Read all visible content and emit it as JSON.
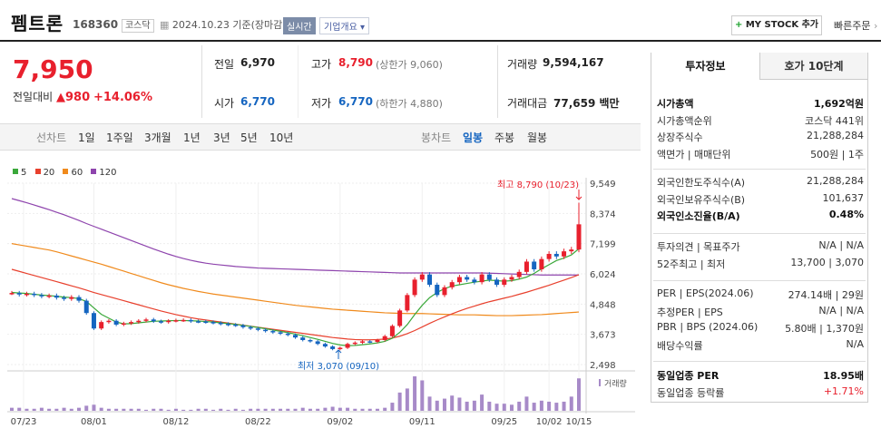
{
  "stock": {
    "name": "펨트론",
    "code": "168360",
    "market": "코스닥",
    "date": "2024.10.23 기준(장마감)",
    "realtime": "실시간",
    "company_info": "기업개요",
    "my_stock": "MY STOCK 추가",
    "quick_order": "빠른주문"
  },
  "price": {
    "current": "7,950",
    "change_label": "전일대비",
    "change": "980",
    "change_pct": "+14.06%"
  },
  "quote": {
    "prev_label": "전일",
    "prev": "6,970",
    "high_label": "고가",
    "high": "8,790",
    "upper_limit": "(상한가 9,060)",
    "volume_label": "거래량",
    "volume": "9,594,167",
    "open_label": "시가",
    "open": "6,770",
    "low_label": "저가",
    "low": "6,770",
    "lower_limit": "(하한가 4,880)",
    "amount_label": "거래대금",
    "amount": "77,659 백만"
  },
  "chart_tabs": {
    "line_label": "선차트",
    "periods": [
      "1일",
      "1주일",
      "3개월",
      "1년",
      "3년",
      "5년",
      "10년"
    ],
    "candle_label": "봉차트",
    "candles": [
      "일봉",
      "주봉",
      "월봉"
    ]
  },
  "legend": [
    {
      "label": "5",
      "color": "#3aa83a"
    },
    {
      "label": "20",
      "color": "#e8402d"
    },
    {
      "label": "60",
      "color": "#f08a1c"
    },
    {
      "label": "120",
      "color": "#8e44ad"
    }
  ],
  "chart_data": {
    "type": "candlestick",
    "y_ticks": [
      "9,549",
      "8,374",
      "7,199",
      "6,024",
      "4,848",
      "3,673",
      "2,498"
    ],
    "ylim": [
      2498,
      9549
    ],
    "x_ticks": [
      "07/23",
      "08/01",
      "08/12",
      "08/22",
      "09/02",
      "09/11",
      "09/25",
      "10/02",
      "10/15"
    ],
    "max_label": "최고 8,790 (10/23)",
    "min_label": "최저 3,070 (09/10)",
    "volume_label": "거래량",
    "up_color": "#e8202d",
    "down_color": "#1565c0",
    "closes": [
      5280,
      5220,
      5250,
      5200,
      5150,
      5180,
      5100,
      5050,
      5120,
      4980,
      4500,
      3900,
      4150,
      4200,
      4050,
      4100,
      4150,
      4200,
      4250,
      4180,
      4150,
      4200,
      4220,
      4230,
      4180,
      4170,
      4150,
      4120,
      4080,
      4050,
      4020,
      3950,
      3900,
      3850,
      3800,
      3750,
      3700,
      3650,
      3550,
      3450,
      3400,
      3300,
      3200,
      3100,
      3150,
      3300,
      3350,
      3400,
      3380,
      3450,
      3600,
      4000,
      4600,
      5200,
      5800,
      6000,
      5600,
      5200,
      5500,
      5700,
      5900,
      5800,
      5700,
      6000,
      5800,
      5600,
      5800,
      5900,
      6100,
      6500,
      6200,
      6600,
      6800,
      6700,
      6900,
      6970,
      7950
    ],
    "ma120": [
      8950,
      8870,
      8790,
      8700,
      8610,
      8520,
      8420,
      8320,
      8210,
      8100,
      7980,
      7870,
      7760,
      7650,
      7540,
      7430,
      7320,
      7210,
      7100,
      6990,
      6890,
      6790,
      6700,
      6620,
      6550,
      6490,
      6440,
      6400,
      6370,
      6340,
      6310,
      6290,
      6270,
      6250,
      6240,
      6230,
      6220,
      6210,
      6200,
      6190,
      6180,
      6170,
      6160,
      6150,
      6140,
      6130,
      6120,
      6110,
      6100,
      6090,
      6080,
      6070,
      6060,
      6060,
      6060,
      6060,
      6060,
      6060,
      6060,
      6060,
      6060,
      6060,
      6060,
      6060,
      6050,
      6040,
      6030,
      6020,
      6010,
      6000,
      5990,
      5980,
      5980,
      5980,
      5980,
      5980,
      5980
    ],
    "ma60": [
      7200,
      7150,
      7100,
      7050,
      7000,
      6950,
      6880,
      6800,
      6720,
      6640,
      6560,
      6480,
      6400,
      6310,
      6220,
      6130,
      6040,
      5950,
      5860,
      5770,
      5680,
      5600,
      5530,
      5460,
      5400,
      5340,
      5290,
      5240,
      5200,
      5160,
      5120,
      5080,
      5040,
      5000,
      4960,
      4920,
      4880,
      4840,
      4800,
      4770,
      4740,
      4710,
      4680,
      4650,
      4630,
      4610,
      4590,
      4570,
      4550,
      4530,
      4510,
      4500,
      4490,
      4480,
      4480,
      4480,
      4470,
      4460,
      4450,
      4440,
      4430,
      4430,
      4430,
      4420,
      4410,
      4400,
      4400,
      4400,
      4410,
      4420,
      4430,
      4440,
      4460,
      4480,
      4500,
      4520,
      4540
    ],
    "ma20": [
      6200,
      6120,
      6040,
      5960,
      5880,
      5800,
      5720,
      5640,
      5560,
      5480,
      5390,
      5300,
      5220,
      5140,
      5060,
      4980,
      4900,
      4820,
      4740,
      4660,
      4580,
      4510,
      4440,
      4380,
      4320,
      4270,
      4230,
      4190,
      4150,
      4110,
      4070,
      4030,
      3990,
      3950,
      3910,
      3870,
      3830,
      3790,
      3750,
      3710,
      3670,
      3630,
      3590,
      3550,
      3520,
      3490,
      3470,
      3460,
      3460,
      3470,
      3490,
      3530,
      3600,
      3700,
      3820,
      3960,
      4100,
      4230,
      4350,
      4470,
      4580,
      4680,
      4770,
      4860,
      4940,
      5010,
      5080,
      5150,
      5230,
      5310,
      5400,
      5490,
      5580,
      5680,
      5780,
      5880,
      5990
    ],
    "ma5": [
      5300,
      5280,
      5260,
      5230,
      5200,
      5180,
      5150,
      5120,
      5100,
      5060,
      4950,
      4700,
      4450,
      4300,
      4150,
      4080,
      4090,
      4120,
      4150,
      4180,
      4190,
      4200,
      4210,
      4210,
      4200,
      4190,
      4170,
      4150,
      4120,
      4090,
      4060,
      4020,
      3980,
      3940,
      3890,
      3840,
      3790,
      3740,
      3680,
      3620,
      3550,
      3480,
      3400,
      3320,
      3260,
      3230,
      3240,
      3270,
      3300,
      3340,
      3400,
      3520,
      3750,
      4050,
      4440,
      4800,
      5100,
      5300,
      5450,
      5550,
      5600,
      5650,
      5700,
      5740,
      5780,
      5760,
      5740,
      5760,
      5820,
      5900,
      6040,
      6220,
      6380,
      6540,
      6640,
      6760,
      7000
    ],
    "volumes": [
      3,
      3,
      2,
      2,
      3,
      2,
      2,
      3,
      2,
      3,
      5,
      6,
      3,
      2,
      2,
      2,
      2,
      2,
      1,
      2,
      2,
      1,
      2,
      1,
      1,
      2,
      2,
      1,
      2,
      1,
      2,
      1,
      2,
      2,
      2,
      2,
      2,
      2,
      2,
      3,
      2,
      2,
      3,
      4,
      3,
      3,
      2,
      2,
      2,
      2,
      3,
      8,
      18,
      22,
      34,
      30,
      14,
      10,
      12,
      15,
      13,
      9,
      10,
      16,
      9,
      7,
      7,
      6,
      9,
      14,
      8,
      10,
      9,
      8,
      9,
      14,
      32
    ]
  },
  "right": {
    "tab1": "투자정보",
    "tab2": "호가 10단계",
    "rows1": [
      {
        "k": "시가총액",
        "v": "1,692억원",
        "bold": true
      },
      {
        "k": "시가총액순위",
        "v": "코스닥 441위"
      },
      {
        "k": "상장주식수",
        "v": "21,288,284"
      },
      {
        "k": "액면가 | 매매단위",
        "v": "500원 | 1주"
      }
    ],
    "rows2": [
      {
        "k": "외국인한도주식수(A)",
        "v": "21,288,284"
      },
      {
        "k": "외국인보유주식수(B)",
        "v": "101,637"
      },
      {
        "k": "외국인소진율(B/A)",
        "v": "0.48%",
        "bold": true
      }
    ],
    "rows3": [
      {
        "k": "투자의견 | 목표주가",
        "v": "N/A | N/A"
      },
      {
        "k": "52주최고 | 최저",
        "v": "13,700 | 3,070"
      }
    ],
    "rows4": [
      {
        "k": "PER | EPS(2024.06)",
        "v": "274.14배 | 29원"
      },
      {
        "k": "추정PER | EPS",
        "v": "N/A | N/A"
      },
      {
        "k": "PBR | BPS (2024.06)",
        "v": "5.80배 | 1,370원"
      },
      {
        "k": "배당수익률",
        "v": "N/A"
      }
    ],
    "rows5": [
      {
        "k": "동일업종 PER",
        "v": "18.95배",
        "bold": true
      },
      {
        "k": "동일업종 등락률",
        "v": "+1.71%",
        "red": true
      }
    ]
  }
}
